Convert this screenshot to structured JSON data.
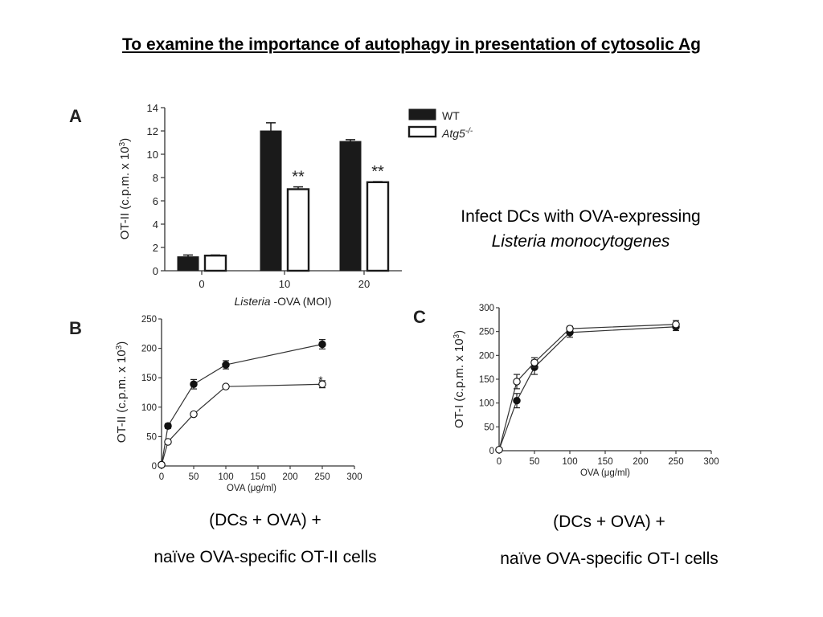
{
  "slide": {
    "title": "To examine the importance of autophagy in presentation of cytosolic Ag"
  },
  "captions": {
    "a_line1": "Infect DCs with  OVA-expressing",
    "a_line2": "Listeria monocytogenes",
    "b_line1": "(DCs + OVA) +",
    "b_line2": "naïve OVA-specific OT-II cells",
    "c_line1": "(DCs + OVA) +",
    "c_line2": "naïve OVA-specific OT-I cells"
  },
  "chart_data": [
    {
      "panel": "A",
      "type": "bar",
      "categories": [
        "0",
        "10",
        "20"
      ],
      "series": [
        {
          "name": "WT",
          "values": [
            1.2,
            12.0,
            11.1
          ],
          "errors": [
            0.15,
            0.7,
            0.15
          ],
          "color": "#1a1a1a"
        },
        {
          "name": "Atg5-/-",
          "values": [
            1.3,
            7.0,
            7.6
          ],
          "errors": [
            0.05,
            0.2,
            0.05
          ],
          "color": "#ffffff"
        }
      ],
      "annotations": [
        {
          "category": "10",
          "text": "**"
        },
        {
          "category": "20",
          "text": "**"
        }
      ],
      "ylabel": "OT-II (c.p.m. x 10",
      "ylabel_sup": "3",
      "ylabel_close": ")",
      "xlabel_italic": "Listeria",
      "xlabel_rest": " -OVA (MOI)",
      "ylim": [
        0,
        14
      ],
      "yticks": [
        0,
        2,
        4,
        6,
        8,
        10,
        12,
        14
      ],
      "legend": {
        "position": "top-right",
        "wt": "WT",
        "ko_base": "Atg5",
        "ko_sup": "-/-"
      }
    },
    {
      "panel": "B",
      "type": "line",
      "series": [
        {
          "name": "WT",
          "marker": "filled",
          "x": [
            0,
            10,
            50,
            100,
            250
          ],
          "y": [
            2,
            68,
            139,
            172,
            207
          ],
          "errors": [
            3,
            4,
            8,
            7,
            8
          ]
        },
        {
          "name": "Atg5-/-",
          "marker": "open",
          "x": [
            0,
            10,
            50,
            100,
            250
          ],
          "y": [
            2,
            41,
            88,
            135,
            139
          ],
          "errors": [
            2,
            3,
            3,
            3,
            6
          ]
        }
      ],
      "annotations": [
        {
          "x": 250,
          "y": 150,
          "text": "*"
        }
      ],
      "ylabel": "OT-II (c.p.m. x 10",
      "ylabel_sup": "3",
      "ylabel_close": ")",
      "xlabel": "OVA (μg/ml)",
      "xlim": [
        0,
        300
      ],
      "ylim": [
        0,
        250
      ],
      "xticks": [
        0,
        50,
        100,
        150,
        200,
        250,
        300
      ],
      "yticks": [
        0,
        50,
        100,
        150,
        200,
        250
      ]
    },
    {
      "panel": "C",
      "type": "line",
      "series": [
        {
          "name": "WT",
          "marker": "filled",
          "x": [
            0,
            25,
            50,
            100,
            250
          ],
          "y": [
            2,
            105,
            175,
            248,
            260
          ],
          "errors": [
            2,
            15,
            15,
            10,
            8
          ]
        },
        {
          "name": "Atg5-/-",
          "marker": "open",
          "x": [
            0,
            25,
            50,
            100,
            250
          ],
          "y": [
            2,
            145,
            185,
            256,
            265
          ],
          "errors": [
            2,
            15,
            10,
            5,
            8
          ]
        }
      ],
      "ylabel": "OT-I (c.p.m. x 10",
      "ylabel_sup": "3",
      "ylabel_close": ")",
      "xlabel": "OVA (μg/ml)",
      "xlim": [
        0,
        300
      ],
      "ylim": [
        0,
        300
      ],
      "xticks": [
        0,
        50,
        100,
        150,
        200,
        250,
        300
      ],
      "yticks": [
        0,
        50,
        100,
        150,
        200,
        250,
        300
      ]
    }
  ]
}
